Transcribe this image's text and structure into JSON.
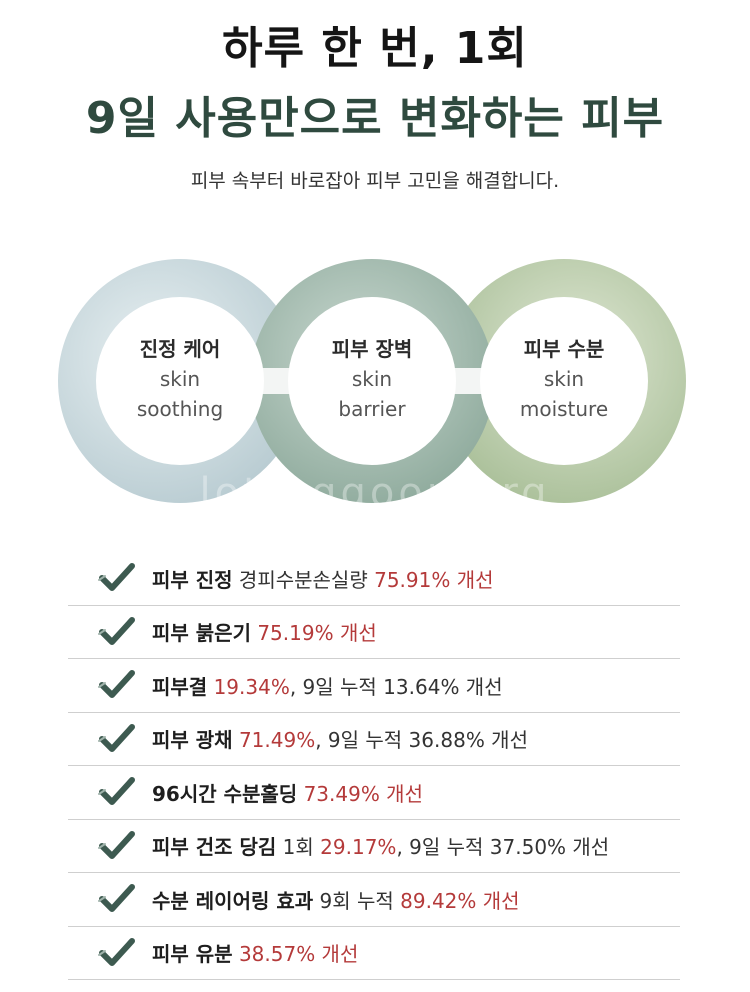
{
  "header": {
    "title_line1": "하루 한 번, 1회",
    "title_line2": "9일 사용만으로 변화하는 피부",
    "subtitle": "피부 속부터 바로잡아 피부 고민을 해결합니다."
  },
  "circles": [
    {
      "kr": "진정 케어",
      "en1": "skin",
      "en2": "soothing",
      "color": "#d2dfe3"
    },
    {
      "kr": "피부 장벽",
      "en1": "skin",
      "en2": "barrier",
      "color": "#adc2b8"
    },
    {
      "kr": "피부 수분",
      "en1": "skin",
      "en2": "moisture",
      "color": "#c3d3b5"
    }
  ],
  "watermark": "lotteggoon.org",
  "results": [
    {
      "bold": "피부 진정",
      "plain": " 경피수분손실량 ",
      "red": "75.91% 개선",
      "plain2": "",
      "red2": "",
      "plain3": ""
    },
    {
      "bold": "피부 붉은기",
      "plain": " ",
      "red": "75.19% 개선",
      "plain2": "",
      "red2": "",
      "plain3": ""
    },
    {
      "bold": "피부결",
      "plain": " ",
      "red": "19.34%",
      "plain2": ", 9일 누적 13.64% 개선",
      "red2": "",
      "plain3": ""
    },
    {
      "bold": "피부 광채",
      "plain": " ",
      "red": "71.49%",
      "plain2": ", 9일 누적 36.88% 개선",
      "red2": "",
      "plain3": ""
    },
    {
      "bold": "96시간 수분홀딩",
      "plain": " ",
      "red": "73.49% 개선",
      "plain2": "",
      "red2": "",
      "plain3": ""
    },
    {
      "bold": "피부 건조 당김",
      "plain": " 1회 ",
      "red": "29.17%",
      "plain2": ", 9일 누적 37.50% 개선",
      "red2": "",
      "plain3": ""
    },
    {
      "bold": "수분 레이어링 효과",
      "plain": " 9회 누적 ",
      "red": "89.42% 개선",
      "plain2": "",
      "red2": "",
      "plain3": ""
    },
    {
      "bold": "피부 유분",
      "plain": " ",
      "red": "38.57% 개선",
      "plain2": "",
      "red2": "",
      "plain3": ""
    }
  ],
  "colors": {
    "accent_red": "#b43a3a",
    "title_green": "#2f4a3f",
    "check": "#3d5a50"
  }
}
